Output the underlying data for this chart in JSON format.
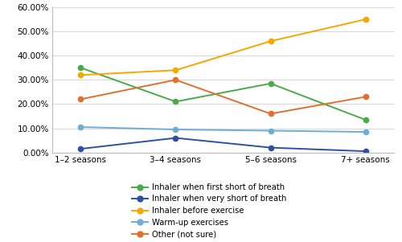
{
  "x_labels": [
    "1–2 seasons",
    "3–4 seasons",
    "5–6 seasons",
    "7+ seasons"
  ],
  "series": [
    {
      "label": "Inhaler when first short of breath",
      "values": [
        35.0,
        21.0,
        28.5,
        13.5
      ],
      "color": "#4aaa4a",
      "marker": "o"
    },
    {
      "label": "Inhaler when very short of breath",
      "values": [
        1.5,
        6.0,
        2.0,
        0.5
      ],
      "color": "#2e4fa3",
      "marker": "o"
    },
    {
      "label": "Inhaler before exercise",
      "values": [
        32.0,
        34.0,
        46.0,
        55.0
      ],
      "color": "#f5a800",
      "marker": "o"
    },
    {
      "label": "Warm-up exercises",
      "values": [
        10.5,
        9.5,
        9.0,
        8.5
      ],
      "color": "#6baed6",
      "marker": "o"
    },
    {
      "label": "Other (not sure)",
      "values": [
        22.0,
        30.0,
        16.0,
        23.0
      ],
      "color": "#e07030",
      "marker": "o"
    }
  ],
  "ylim": [
    0,
    60
  ],
  "yticks": [
    0,
    10,
    20,
    30,
    40,
    50,
    60
  ],
  "ytick_labels": [
    "0.00%",
    "10.00%",
    "20.00%",
    "30.00%",
    "40.00%",
    "50.00%",
    "60.00%"
  ],
  "background_color": "#ffffff",
  "grid_color": "#d9d9d9",
  "legend_fontsize": 7.2,
  "tick_fontsize": 7.5
}
